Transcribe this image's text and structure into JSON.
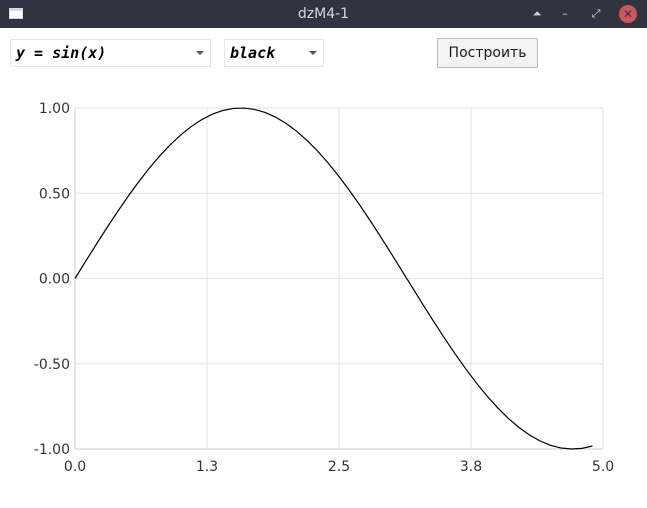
{
  "window": {
    "title": "dzM4-1",
    "buttons": {
      "shade": "⏶",
      "minimize": "–",
      "maximize": "⤢",
      "close": "✕"
    }
  },
  "toolbar": {
    "function_combo": {
      "value": "y = sin(x)"
    },
    "color_combo": {
      "value": "black"
    },
    "build_label": "Построить"
  },
  "chart_data": {
    "type": "line",
    "series": [
      {
        "color": "#000000",
        "x": [
          0,
          0.1,
          0.2,
          0.3,
          0.4,
          0.5,
          0.6,
          0.7,
          0.8,
          0.9,
          1.0,
          1.1,
          1.2,
          1.3,
          1.4,
          1.5,
          1.6,
          1.7,
          1.8,
          1.9,
          2.0,
          2.1,
          2.2,
          2.3,
          2.4,
          2.5,
          2.6,
          2.7,
          2.8,
          2.9,
          3.0,
          3.1,
          3.2,
          3.3,
          3.4,
          3.5,
          3.6,
          3.7,
          3.8,
          3.9,
          4.0,
          4.1,
          4.2,
          4.3,
          4.4,
          4.5,
          4.6,
          4.7,
          4.8,
          4.9
        ],
        "y": [
          0.0,
          0.0998,
          0.1987,
          0.2955,
          0.3894,
          0.4794,
          0.5646,
          0.6442,
          0.7174,
          0.7833,
          0.8415,
          0.8912,
          0.932,
          0.9636,
          0.9854,
          0.9975,
          0.9996,
          0.9917,
          0.9738,
          0.9463,
          0.9093,
          0.8632,
          0.8085,
          0.7457,
          0.6755,
          0.5985,
          0.5155,
          0.4274,
          0.335,
          0.2392,
          0.1411,
          0.0416,
          -0.0584,
          -0.1577,
          -0.2555,
          -0.3508,
          -0.4425,
          -0.5298,
          -0.6119,
          -0.6878,
          -0.7568,
          -0.8183,
          -0.8716,
          -0.9162,
          -0.9516,
          -0.9775,
          -0.9937,
          -0.9999,
          -0.9962,
          -0.9825
        ]
      }
    ],
    "xlim": [
      0,
      5.0
    ],
    "ylim": [
      -1.0,
      1.0
    ],
    "x_ticks": [
      0,
      1.25,
      2.5,
      3.75,
      5.0
    ],
    "x_tick_labels": [
      "0.0",
      "1.3",
      "2.5",
      "3.8",
      "5.0"
    ],
    "y_ticks": [
      1.0,
      0.5,
      0.0,
      -0.5,
      -1.0
    ],
    "y_tick_labels": [
      "1.00",
      "0.50",
      "0.00",
      "-0.50",
      "-1.00"
    ],
    "grid": true,
    "colors": {
      "grid": "#e0e0e0",
      "axis": "#cccccc",
      "line": "#000000"
    }
  }
}
